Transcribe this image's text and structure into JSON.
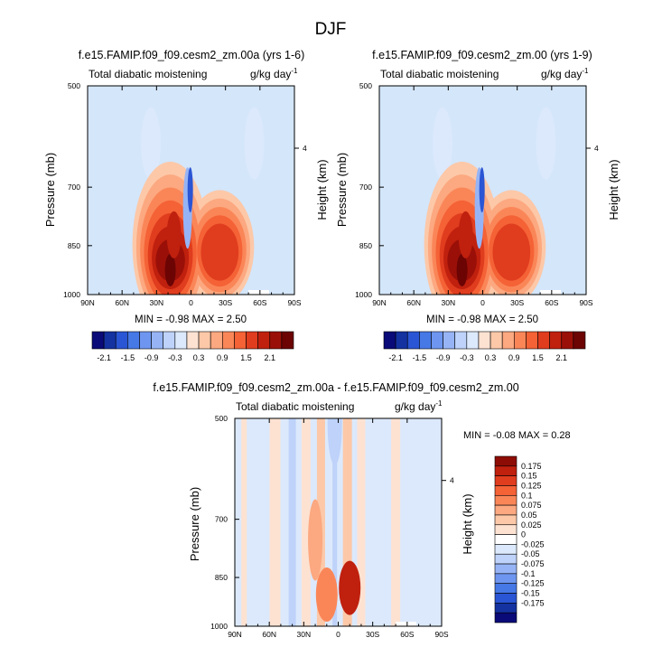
{
  "figure_title": "DJF",
  "panels": [
    {
      "title": "f.e15.FAMIP.f09_f09.cesm2_zm.00a (yrs 1-6)",
      "left_label": "Total diabatic moistening",
      "units": "g/kg day",
      "units_sup": "-1",
      "ylabel": "Pressure (mb)",
      "ylabel_right": "Height (km)",
      "stats": "MIN =  -0.98  MAX =  2.50"
    },
    {
      "title": "f.e15.FAMIP.f09_f09.cesm2_zm.00 (yrs 1-9)",
      "left_label": "Total diabatic moistening",
      "units": "g/kg day",
      "units_sup": "-1",
      "ylabel": "Pressure (mb)",
      "ylabel_right": "Height (km)",
      "stats": "MIN =  -0.98  MAX =  2.50"
    },
    {
      "title": "f.e15.FAMIP.f09_f09.cesm2_zm.00a - f.e15.FAMIP.f09_f09.cesm2_zm.00",
      "left_label": "Total diabatic moistening",
      "units": "g/kg day",
      "units_sup": "-1",
      "ylabel": "Pressure (mb)",
      "ylabel_right": "Height (km)",
      "stats": "MIN =  -0.08  MAX =  0.28"
    }
  ],
  "colors": {
    "main_scale": [
      "#0a0a78",
      "#1432a0",
      "#2a55d4",
      "#4678e6",
      "#6e96f0",
      "#96b4f5",
      "#bed2fa",
      "#dce9fc",
      "#fde2d2",
      "#fcc8a8",
      "#fca880",
      "#fa8658",
      "#f46236",
      "#e03c1e",
      "#c0200e",
      "#9a1008",
      "#6c0404"
    ],
    "diff_scale": [
      "#0a0a78",
      "#1432a0",
      "#2a55d4",
      "#4678e6",
      "#6e96f0",
      "#96b4f5",
      "#bed2fa",
      "#dce9fc",
      "#ffffff",
      "#fde2d2",
      "#fcc8a8",
      "#fca880",
      "#fa8658",
      "#f46236",
      "#e03c1e",
      "#c0200e",
      "#8e0c06"
    ],
    "background_field": "#d4e6fa",
    "diff_background": "#dce9fc"
  },
  "chart_data": [
    {
      "type": "heatmap",
      "title": "f.e15.FAMIP.f09_f09.cesm2_zm.00a (yrs 1-6)",
      "xlabel": "",
      "ylabel": "Pressure (mb)",
      "x_ticks": [
        "90N",
        "60N",
        "30N",
        "0",
        "30S",
        "60S",
        "90S"
      ],
      "x_values": [
        90,
        60,
        30,
        0,
        -30,
        -60,
        -90
      ],
      "y_ticks": [
        "500",
        "700",
        "850",
        "1000"
      ],
      "y_values": [
        500,
        700,
        850,
        1000
      ],
      "right_ticks": [
        "4"
      ],
      "ylim": [
        1000,
        500
      ],
      "xlim": [
        90,
        -90
      ],
      "contour_levels": [
        -2.1,
        -1.8,
        -1.5,
        -1.2,
        -0.9,
        -0.6,
        -0.3,
        0,
        0.3,
        0.6,
        0.9,
        1.2,
        1.5,
        1.8,
        2.1,
        2.4
      ],
      "colorbar_labels": [
        "-2.1",
        "-1.5",
        "-0.9",
        "-0.3",
        "0.3",
        "0.9",
        "1.5",
        "2.1"
      ],
      "min": -0.98,
      "max": 2.5,
      "features": [
        {
          "lat": 18,
          "p": 900,
          "value": 2.4
        },
        {
          "lat": 18,
          "p": 820,
          "value": 1.8
        },
        {
          "lat": -25,
          "p": 880,
          "value": 1.5
        },
        {
          "lat": 3,
          "p": 750,
          "value": -0.9
        },
        {
          "lat": 35,
          "p": 570,
          "value": -0.3
        },
        {
          "lat": -55,
          "p": 570,
          "value": -0.3
        }
      ]
    },
    {
      "type": "heatmap",
      "title": "f.e15.FAMIP.f09_f09.cesm2_zm.00 (yrs 1-9)",
      "xlabel": "",
      "ylabel": "Pressure (mb)",
      "x_ticks": [
        "90N",
        "60N",
        "30N",
        "0",
        "30S",
        "60S",
        "90S"
      ],
      "x_values": [
        90,
        60,
        30,
        0,
        -30,
        -60,
        -90
      ],
      "y_ticks": [
        "500",
        "700",
        "850",
        "1000"
      ],
      "y_values": [
        500,
        700,
        850,
        1000
      ],
      "right_ticks": [
        "4"
      ],
      "ylim": [
        1000,
        500
      ],
      "xlim": [
        90,
        -90
      ],
      "contour_levels": [
        -2.1,
        -1.8,
        -1.5,
        -1.2,
        -0.9,
        -0.6,
        -0.3,
        0,
        0.3,
        0.6,
        0.9,
        1.2,
        1.5,
        1.8,
        2.1,
        2.4
      ],
      "colorbar_labels": [
        "-2.1",
        "-1.5",
        "-0.9",
        "-0.3",
        "0.3",
        "0.9",
        "1.5",
        "2.1"
      ],
      "min": -0.98,
      "max": 2.5,
      "features": [
        {
          "lat": 18,
          "p": 900,
          "value": 2.4
        },
        {
          "lat": 18,
          "p": 820,
          "value": 1.8
        },
        {
          "lat": -25,
          "p": 880,
          "value": 1.5
        },
        {
          "lat": 3,
          "p": 750,
          "value": -0.9
        },
        {
          "lat": 35,
          "p": 570,
          "value": -0.3
        },
        {
          "lat": -55,
          "p": 570,
          "value": -0.3
        }
      ]
    },
    {
      "type": "heatmap",
      "title": "f.e15.FAMIP.f09_f09.cesm2_zm.00a - f.e15.FAMIP.f09_f09.cesm2_zm.00",
      "xlabel": "",
      "ylabel": "Pressure (mb)",
      "x_ticks": [
        "90N",
        "60N",
        "30N",
        "0",
        "30S",
        "60S",
        "90S"
      ],
      "x_values": [
        90,
        60,
        30,
        0,
        -30,
        -60,
        -90
      ],
      "y_ticks": [
        "500",
        "700",
        "850",
        "1000"
      ],
      "y_values": [
        500,
        700,
        850,
        1000
      ],
      "right_ticks": [
        "4"
      ],
      "ylim": [
        1000,
        500
      ],
      "xlim": [
        90,
        -90
      ],
      "contour_levels": [
        -0.175,
        -0.15,
        -0.125,
        -0.1,
        -0.075,
        -0.05,
        -0.025,
        0,
        0.025,
        0.05,
        0.075,
        0.1,
        0.125,
        0.15,
        0.175
      ],
      "colorbar_labels": [
        "0.175",
        "0.15",
        "0.125",
        "0.1",
        "0.075",
        "0.05",
        "0.025",
        "0",
        "-0.025",
        "-0.05",
        "-0.075",
        "-0.1",
        "-0.125",
        "-0.15",
        "-0.175"
      ],
      "min": -0.08,
      "max": 0.28,
      "features": [
        {
          "lat": -10,
          "p": 880,
          "value": 0.175
        },
        {
          "lat": 10,
          "p": 900,
          "value": 0.1
        },
        {
          "lat": 20,
          "p": 750,
          "value": 0.075
        },
        {
          "lat": 3,
          "p": 510,
          "value": -0.05
        },
        {
          "lat": -30,
          "p": 700,
          "value": -0.025
        }
      ]
    }
  ]
}
